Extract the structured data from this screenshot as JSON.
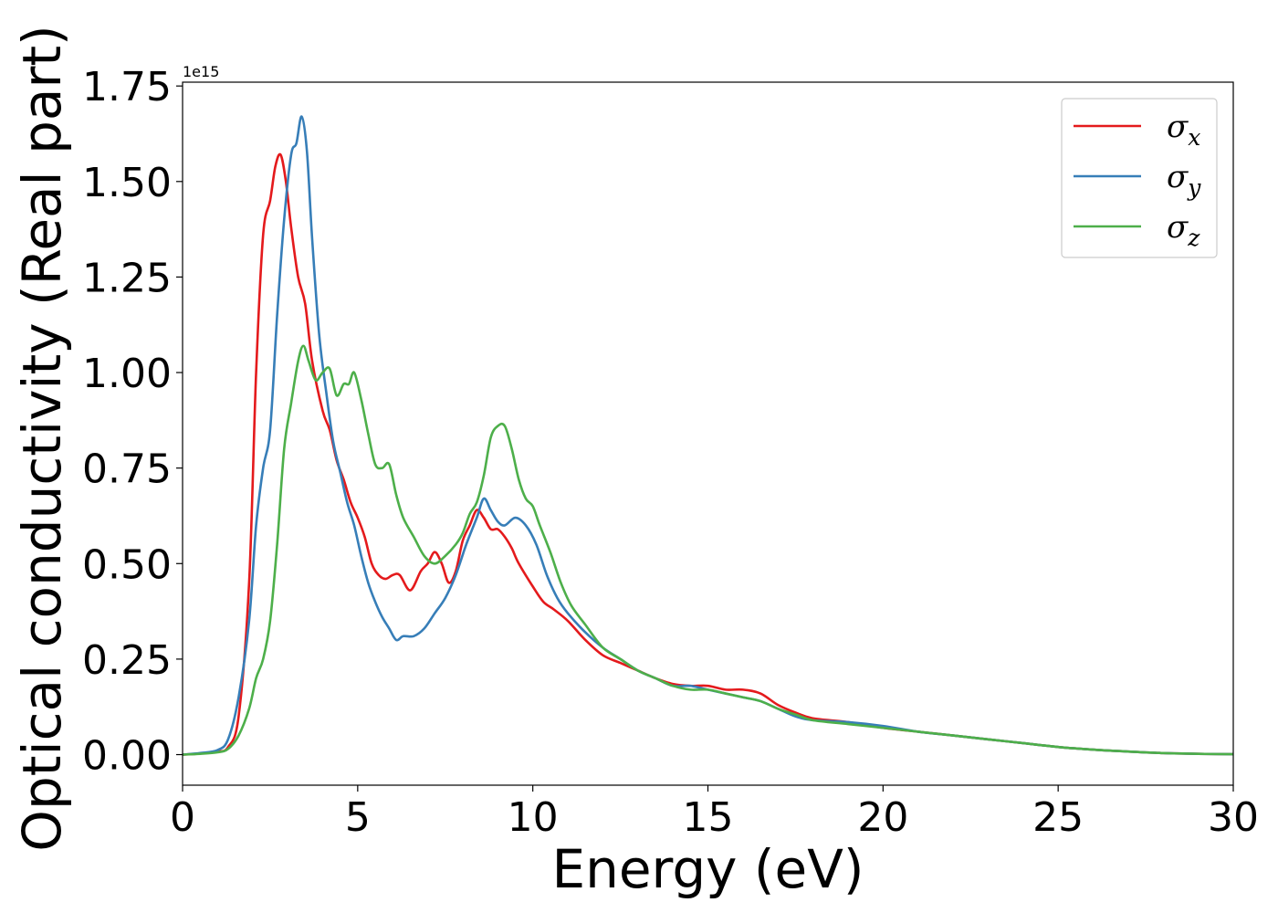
{
  "chart_data": {
    "type": "line",
    "xlabel": "Energy (eV)",
    "ylabel": "Optical conductivity (Real part)",
    "y_offset_label": "1e15",
    "xlim": [
      0,
      30
    ],
    "ylim": [
      -0.08,
      1.76
    ],
    "xticks": [
      0,
      5,
      10,
      15,
      20,
      25,
      30
    ],
    "xtick_labels": [
      "0",
      "5",
      "10",
      "15",
      "20",
      "25",
      "30"
    ],
    "yticks": [
      0.0,
      0.25,
      0.5,
      0.75,
      1.0,
      1.25,
      1.5,
      1.75
    ],
    "ytick_labels": [
      "0.00",
      "0.25",
      "0.50",
      "0.75",
      "1.00",
      "1.25",
      "1.50",
      "1.75"
    ],
    "grid": false,
    "legend_position": "top-right",
    "series": [
      {
        "legend_symbol": "σ",
        "legend_subscript": "x",
        "color": "#e41a1c",
        "x": [
          0,
          0.5,
          1.0,
          1.3,
          1.6,
          1.9,
          2.1,
          2.3,
          2.5,
          2.65,
          2.8,
          2.95,
          3.1,
          3.3,
          3.5,
          3.7,
          4.0,
          4.2,
          4.4,
          4.6,
          4.8,
          5.0,
          5.2,
          5.4,
          5.6,
          5.8,
          6.0,
          6.2,
          6.5,
          6.8,
          7.0,
          7.2,
          7.4,
          7.6,
          7.8,
          8.0,
          8.2,
          8.4,
          8.6,
          8.8,
          9.0,
          9.2,
          9.4,
          9.6,
          10.0,
          10.3,
          10.6,
          11.0,
          11.5,
          12.0,
          12.5,
          13.0,
          13.5,
          14.0,
          14.5,
          15.0,
          15.5,
          16.0,
          16.5,
          17.0,
          17.5,
          18.0,
          19.0,
          20.0,
          21.0,
          22.0,
          23.0,
          24.0,
          25.0,
          26.0,
          27.0,
          28.0,
          29.0,
          30.0
        ],
        "y": [
          0.0,
          0.003,
          0.008,
          0.02,
          0.1,
          0.45,
          1.0,
          1.36,
          1.45,
          1.54,
          1.57,
          1.5,
          1.38,
          1.25,
          1.18,
          1.03,
          0.9,
          0.85,
          0.77,
          0.72,
          0.66,
          0.62,
          0.57,
          0.5,
          0.47,
          0.46,
          0.47,
          0.47,
          0.43,
          0.48,
          0.5,
          0.53,
          0.5,
          0.45,
          0.48,
          0.56,
          0.6,
          0.64,
          0.62,
          0.59,
          0.59,
          0.57,
          0.54,
          0.5,
          0.44,
          0.4,
          0.38,
          0.35,
          0.3,
          0.26,
          0.24,
          0.22,
          0.2,
          0.185,
          0.18,
          0.18,
          0.17,
          0.17,
          0.16,
          0.13,
          0.11,
          0.095,
          0.085,
          0.07,
          0.06,
          0.05,
          0.04,
          0.03,
          0.02,
          0.013,
          0.008,
          0.004,
          0.002,
          0.001
        ]
      },
      {
        "legend_symbol": "σ",
        "legend_subscript": "y",
        "color": "#377eb8",
        "x": [
          0,
          0.5,
          1.0,
          1.3,
          1.6,
          1.9,
          2.1,
          2.3,
          2.5,
          2.7,
          2.9,
          3.1,
          3.25,
          3.4,
          3.55,
          3.7,
          3.9,
          4.1,
          4.3,
          4.5,
          4.7,
          4.9,
          5.1,
          5.3,
          5.5,
          5.7,
          5.9,
          6.1,
          6.3,
          6.6,
          6.9,
          7.2,
          7.5,
          7.8,
          8.1,
          8.4,
          8.6,
          8.8,
          9.0,
          9.2,
          9.5,
          9.8,
          10.1,
          10.4,
          10.7,
          11.0,
          11.5,
          12.0,
          12.5,
          13.0,
          13.5,
          14.0,
          14.5,
          15.0,
          15.5,
          16.0,
          16.5,
          17.0,
          17.5,
          18.0,
          19.0,
          20.0,
          21.0,
          22.0,
          23.0,
          24.0,
          25.0,
          26.0,
          27.0,
          28.0,
          29.0,
          30.0
        ],
        "y": [
          0.0,
          0.004,
          0.012,
          0.04,
          0.15,
          0.35,
          0.6,
          0.75,
          0.85,
          1.15,
          1.4,
          1.57,
          1.6,
          1.67,
          1.58,
          1.35,
          1.1,
          0.95,
          0.82,
          0.74,
          0.66,
          0.6,
          0.52,
          0.45,
          0.4,
          0.36,
          0.33,
          0.3,
          0.31,
          0.31,
          0.33,
          0.37,
          0.41,
          0.47,
          0.55,
          0.62,
          0.67,
          0.64,
          0.61,
          0.6,
          0.62,
          0.6,
          0.55,
          0.47,
          0.41,
          0.37,
          0.32,
          0.28,
          0.25,
          0.22,
          0.2,
          0.18,
          0.18,
          0.17,
          0.16,
          0.15,
          0.14,
          0.12,
          0.1,
          0.09,
          0.085,
          0.075,
          0.06,
          0.05,
          0.04,
          0.03,
          0.02,
          0.013,
          0.008,
          0.004,
          0.002,
          0.001
        ]
      },
      {
        "legend_symbol": "σ",
        "legend_subscript": "z",
        "color": "#4daf4a",
        "x": [
          0,
          0.5,
          1.0,
          1.3,
          1.6,
          1.9,
          2.1,
          2.3,
          2.5,
          2.7,
          2.9,
          3.1,
          3.3,
          3.45,
          3.6,
          3.8,
          4.0,
          4.2,
          4.4,
          4.6,
          4.75,
          4.9,
          5.1,
          5.3,
          5.5,
          5.7,
          5.9,
          6.1,
          6.3,
          6.6,
          6.9,
          7.2,
          7.5,
          7.8,
          8.0,
          8.2,
          8.4,
          8.6,
          8.8,
          9.0,
          9.2,
          9.4,
          9.6,
          9.8,
          10.0,
          10.2,
          10.5,
          10.8,
          11.1,
          11.5,
          12.0,
          12.5,
          13.0,
          13.5,
          14.0,
          14.5,
          15.0,
          15.5,
          16.0,
          16.5,
          17.0,
          17.5,
          18.0,
          19.0,
          20.0,
          21.0,
          22.0,
          23.0,
          24.0,
          25.0,
          26.0,
          27.0,
          28.0,
          29.0,
          30.0
        ],
        "y": [
          0.0,
          0.002,
          0.006,
          0.015,
          0.05,
          0.12,
          0.2,
          0.25,
          0.35,
          0.55,
          0.8,
          0.92,
          1.03,
          1.07,
          1.03,
          0.98,
          1.0,
          1.01,
          0.94,
          0.97,
          0.97,
          1.0,
          0.93,
          0.84,
          0.76,
          0.75,
          0.76,
          0.68,
          0.62,
          0.57,
          0.52,
          0.5,
          0.52,
          0.55,
          0.58,
          0.63,
          0.66,
          0.73,
          0.83,
          0.86,
          0.86,
          0.8,
          0.72,
          0.67,
          0.65,
          0.6,
          0.53,
          0.45,
          0.39,
          0.34,
          0.28,
          0.25,
          0.22,
          0.2,
          0.18,
          0.17,
          0.17,
          0.16,
          0.15,
          0.14,
          0.12,
          0.105,
          0.09,
          0.08,
          0.07,
          0.06,
          0.05,
          0.04,
          0.03,
          0.02,
          0.013,
          0.008,
          0.004,
          0.002,
          0.001
        ]
      }
    ]
  }
}
